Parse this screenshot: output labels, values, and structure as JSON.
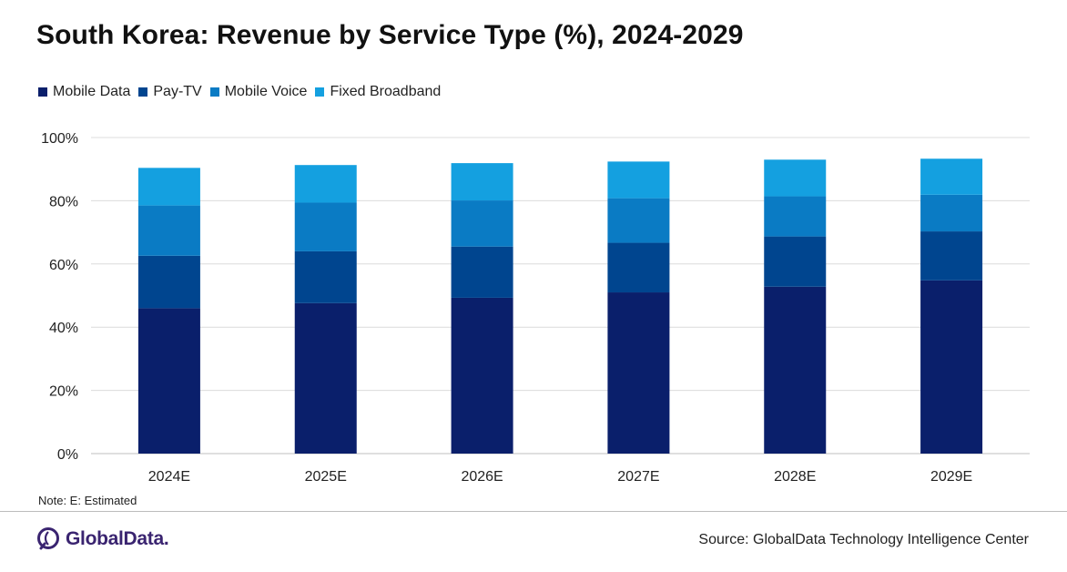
{
  "title": "South Korea: Revenue by Service Type (%), 2024-2029",
  "note": "Note: E: Estimated",
  "source": "Source: GlobalData Technology Intelligence Center",
  "logo": {
    "text": "GlobalData.",
    "icon": "globaldata-logo-icon"
  },
  "chart_data": {
    "type": "bar",
    "stacked": true,
    "title": "South Korea: Revenue by Service Type (%), 2024-2029",
    "xlabel": "",
    "ylabel": "",
    "ylim": [
      0,
      100
    ],
    "yticks": [
      "0%",
      "20%",
      "40%",
      "60%",
      "80%",
      "100%"
    ],
    "grid": true,
    "legend_position": "top-left",
    "categories": [
      "2024E",
      "2025E",
      "2026E",
      "2027E",
      "2028E",
      "2029E"
    ],
    "series": [
      {
        "name": "Mobile Data",
        "color": "#0a1f6b",
        "values": [
          46.0,
          47.6,
          49.3,
          51.0,
          52.8,
          54.8
        ]
      },
      {
        "name": "Pay-TV",
        "color": "#00458f",
        "values": [
          16.6,
          16.4,
          16.2,
          15.7,
          15.9,
          15.5
        ]
      },
      {
        "name": "Mobile Voice",
        "color": "#0a7bc4",
        "values": [
          15.9,
          15.4,
          14.6,
          14.1,
          12.7,
          11.6
        ]
      },
      {
        "name": "Fixed Broadband",
        "color": "#14a0e0",
        "values": [
          11.9,
          11.9,
          11.8,
          11.6,
          11.6,
          11.4
        ]
      }
    ]
  }
}
